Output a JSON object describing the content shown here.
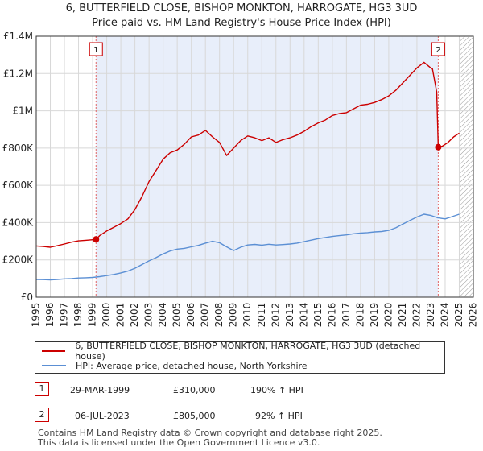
{
  "header": {
    "title_line1": "6, BUTTERFIELD CLOSE, BISHOP MONKTON, HARROGATE, HG3 3UD",
    "title_line2": "Price paid vs. HM Land Registry's House Price Index (HPI)"
  },
  "colors": {
    "property": "#cc0000",
    "hpi": "#5b8fd4",
    "shade": "#e8eefa",
    "grid": "#d8d8d8",
    "marker_line": "#e06666",
    "hatch": "#9a9a9a"
  },
  "chart_data": {
    "type": "line",
    "title": "6, BUTTERFIELD CLOSE, BISHOP MONKTON, HARROGATE, HG3 3UD — Price paid vs. HM Land Registry's House Price Index (HPI)",
    "xlabel": "",
    "ylabel": "",
    "xlim": [
      1995,
      2026
    ],
    "ylim": [
      0,
      1400000
    ],
    "x_ticks": [
      1995,
      1996,
      1997,
      1998,
      1999,
      2000,
      2001,
      2002,
      2003,
      2004,
      2005,
      2006,
      2007,
      2008,
      2009,
      2010,
      2011,
      2012,
      2013,
      2014,
      2015,
      2016,
      2017,
      2018,
      2019,
      2020,
      2021,
      2022,
      2023,
      2024,
      2025,
      2026
    ],
    "y_ticks": [
      0,
      200000,
      400000,
      600000,
      800000,
      1000000,
      1200000,
      1400000
    ],
    "y_tick_labels": [
      "£0",
      "£200K",
      "£400K",
      "£600K",
      "£800K",
      "£1M",
      "£1.2M",
      "£1.4M"
    ],
    "grid": true,
    "shaded_period": [
      1999.24,
      2023.51
    ],
    "future_hatch_from": 2025.0,
    "series": [
      {
        "name": "6, BUTTERFIELD CLOSE, BISHOP MONKTON, HARROGATE, HG3 3UD (detached house)",
        "color": "#cc0000",
        "x": [
          1995.0,
          1995.5,
          1996.0,
          1996.5,
          1997.0,
          1997.5,
          1998.0,
          1998.5,
          1999.0,
          1999.24,
          1999.5,
          2000.0,
          2000.5,
          2001.0,
          2001.5,
          2002.0,
          2002.5,
          2003.0,
          2003.5,
          2004.0,
          2004.5,
          2005.0,
          2005.5,
          2006.0,
          2006.5,
          2007.0,
          2007.5,
          2008.0,
          2008.5,
          2009.0,
          2009.5,
          2010.0,
          2010.5,
          2011.0,
          2011.5,
          2012.0,
          2012.5,
          2013.0,
          2013.5,
          2014.0,
          2014.5,
          2015.0,
          2015.5,
          2016.0,
          2016.5,
          2017.0,
          2017.5,
          2018.0,
          2018.5,
          2019.0,
          2019.5,
          2020.0,
          2020.5,
          2021.0,
          2021.5,
          2022.0,
          2022.5,
          2022.9,
          2023.1,
          2023.4,
          2023.51,
          2023.8,
          2024.2,
          2024.6,
          2025.0
        ],
        "values": [
          275000,
          272000,
          268000,
          276000,
          285000,
          295000,
          302000,
          305000,
          308000,
          310000,
          330000,
          355000,
          375000,
          395000,
          420000,
          470000,
          540000,
          620000,
          680000,
          740000,
          775000,
          790000,
          820000,
          860000,
          870000,
          895000,
          860000,
          830000,
          760000,
          800000,
          840000,
          865000,
          855000,
          840000,
          855000,
          830000,
          845000,
          855000,
          870000,
          890000,
          915000,
          935000,
          950000,
          975000,
          985000,
          990000,
          1010000,
          1030000,
          1035000,
          1045000,
          1060000,
          1080000,
          1110000,
          1150000,
          1190000,
          1230000,
          1260000,
          1235000,
          1225000,
          1100000,
          805000,
          810000,
          830000,
          860000,
          880000
        ]
      },
      {
        "name": "HPI: Average price, detached house, North Yorkshire",
        "color": "#5b8fd4",
        "x": [
          1995.0,
          1995.5,
          1996.0,
          1996.5,
          1997.0,
          1997.5,
          1998.0,
          1998.5,
          1999.0,
          1999.5,
          2000.0,
          2000.5,
          2001.0,
          2001.5,
          2002.0,
          2002.5,
          2003.0,
          2003.5,
          2004.0,
          2004.5,
          2005.0,
          2005.5,
          2006.0,
          2006.5,
          2007.0,
          2007.5,
          2008.0,
          2008.5,
          2009.0,
          2009.5,
          2010.0,
          2010.5,
          2011.0,
          2011.5,
          2012.0,
          2012.5,
          2013.0,
          2013.5,
          2014.0,
          2014.5,
          2015.0,
          2015.5,
          2016.0,
          2016.5,
          2017.0,
          2017.5,
          2018.0,
          2018.5,
          2019.0,
          2019.5,
          2020.0,
          2020.5,
          2021.0,
          2021.5,
          2022.0,
          2022.5,
          2023.0,
          2023.5,
          2024.0,
          2024.5,
          2025.0
        ],
        "values": [
          95000,
          94000,
          93000,
          95000,
          98000,
          100000,
          103000,
          104000,
          106000,
          110000,
          116000,
          122000,
          130000,
          140000,
          155000,
          175000,
          195000,
          212000,
          232000,
          248000,
          258000,
          262000,
          270000,
          278000,
          290000,
          300000,
          292000,
          270000,
          250000,
          268000,
          280000,
          283000,
          279000,
          284000,
          280000,
          282000,
          285000,
          290000,
          298000,
          306000,
          314000,
          320000,
          326000,
          330000,
          334000,
          340000,
          344000,
          346000,
          350000,
          352000,
          358000,
          372000,
          392000,
          412000,
          430000,
          445000,
          438000,
          425000,
          420000,
          432000,
          445000
        ]
      }
    ],
    "sales": [
      {
        "label": "1",
        "x": 1999.24,
        "value": 310000
      },
      {
        "label": "2",
        "x": 2023.51,
        "value": 805000
      }
    ]
  },
  "legend": {
    "property_label": "6, BUTTERFIELD CLOSE, BISHOP MONKTON, HARROGATE, HG3 3UD (detached house)",
    "hpi_label": "HPI: Average price, detached house, North Yorkshire"
  },
  "transactions": [
    {
      "num": "1",
      "date": "29-MAR-1999",
      "price": "£310,000",
      "hpi": "190% ↑ HPI"
    },
    {
      "num": "2",
      "date": "06-JUL-2023",
      "price": "£805,000",
      "hpi": "92% ↑ HPI"
    }
  ],
  "footer": {
    "line1": "Contains HM Land Registry data © Crown copyright and database right 2025.",
    "line2": "This data is licensed under the Open Government Licence v3.0."
  }
}
